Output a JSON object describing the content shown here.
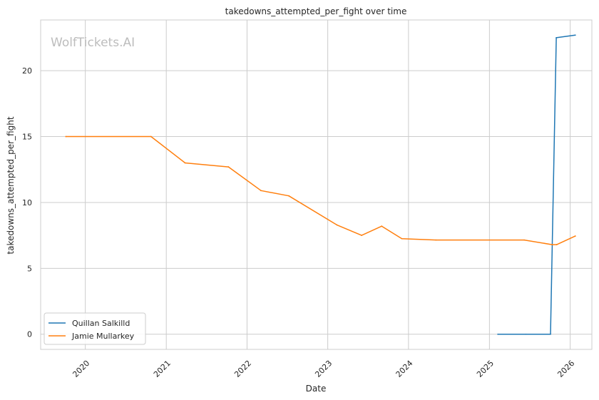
{
  "chart_data": {
    "type": "line",
    "title": "takedowns_attempted_per_fight over time",
    "xlabel": "Date",
    "ylabel": "takedowns_attempted_per_fight",
    "watermark": "WolfTickets.AI",
    "xlim": [
      "2019-06-13",
      "2026-04-09"
    ],
    "ylim": [
      -1.15,
      23.85
    ],
    "x_ticks": [
      "2020",
      "2021",
      "2022",
      "2023",
      "2024",
      "2025",
      "2026"
    ],
    "y_ticks": [
      0,
      5,
      10,
      15,
      20
    ],
    "grid": true,
    "legend_position": "lower-left",
    "series": [
      {
        "name": "Quillan Salkilld",
        "color": "#1f77b4",
        "points": [
          {
            "x": "2025-02-08",
            "y": 0
          },
          {
            "x": "2025-06-14",
            "y": 0
          },
          {
            "x": "2025-10-04",
            "y": 0
          },
          {
            "x": "2025-10-30",
            "y": 22.5
          },
          {
            "x": "2026-01-24",
            "y": 22.7
          }
        ]
      },
      {
        "name": "Jamie Mullarkey",
        "color": "#ff7f0e",
        "points": [
          {
            "x": "2019-10-05",
            "y": 15.0
          },
          {
            "x": "2020-10-24",
            "y": 15.0
          },
          {
            "x": "2021-03-27",
            "y": 13.0
          },
          {
            "x": "2021-10-09",
            "y": 12.7
          },
          {
            "x": "2022-03-05",
            "y": 10.9
          },
          {
            "x": "2022-07-09",
            "y": 10.5
          },
          {
            "x": "2023-02-11",
            "y": 8.3
          },
          {
            "x": "2023-06-03",
            "y": 7.5
          },
          {
            "x": "2023-09-02",
            "y": 8.2
          },
          {
            "x": "2023-12-02",
            "y": 7.25
          },
          {
            "x": "2024-05-04",
            "y": 7.15
          },
          {
            "x": "2025-06-07",
            "y": 7.15
          },
          {
            "x": "2025-10-11",
            "y": 6.8
          },
          {
            "x": "2025-11-01",
            "y": 6.8
          },
          {
            "x": "2026-01-24",
            "y": 7.45
          }
        ]
      }
    ]
  }
}
